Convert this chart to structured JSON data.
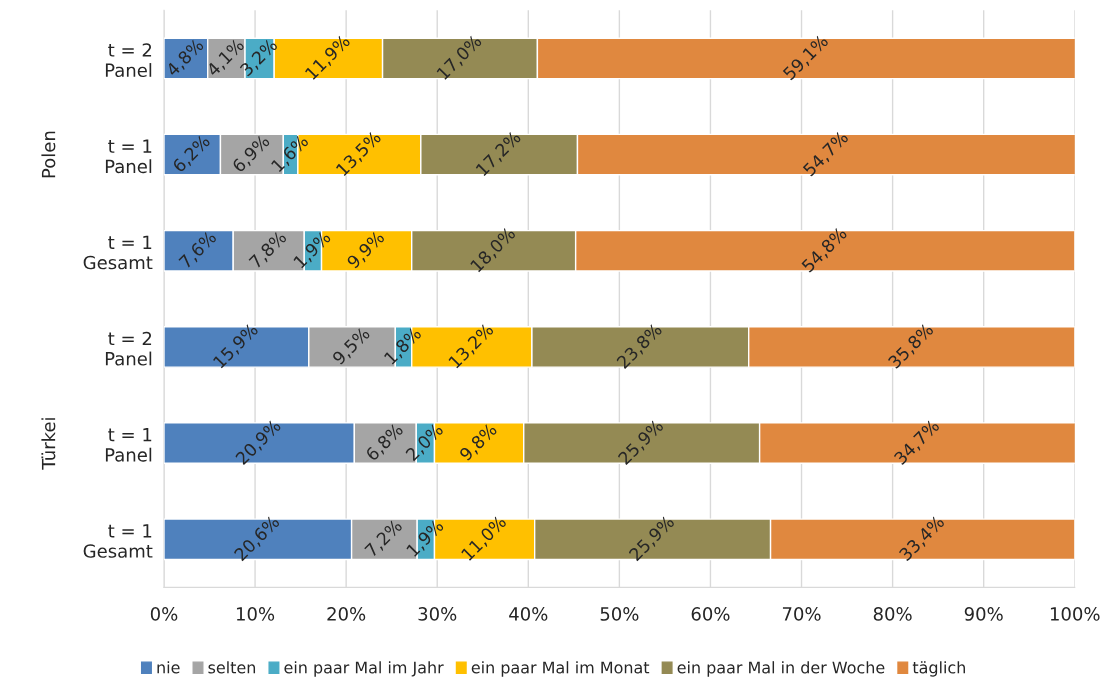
{
  "chart_data": {
    "type": "bar",
    "orientation": "horizontal",
    "stacked": true,
    "categories": [
      "t = 2\nPanel",
      "t = 1\nPanel",
      "t = 1\nGesamt",
      "t = 2\nPanel",
      "t = 1\nPanel",
      "t = 1\nGesamt"
    ],
    "annotations": [
      "Polen",
      "Türkei"
    ],
    "series": [
      {
        "name": "nie",
        "color": "#4f81bd",
        "values": [
          4.8,
          6.2,
          7.6,
          15.9,
          20.9,
          20.6
        ],
        "value_labels": [
          "4,8%",
          "6,2%",
          "7,6%",
          "15,9%",
          "20,9%",
          "20,6%"
        ]
      },
      {
        "name": "selten",
        "color": "#a5a5a5",
        "values": [
          4.1,
          6.9,
          7.8,
          9.5,
          6.8,
          7.2
        ],
        "value_labels": [
          "4,1%",
          "6,9%",
          "7,8%",
          "9,5%",
          "6,8%",
          "7,2%"
        ]
      },
      {
        "name": "ein paar Mal im Jahr",
        "color": "#4bacc6",
        "values": [
          3.2,
          1.6,
          1.9,
          1.8,
          2.0,
          1.9
        ],
        "value_labels": [
          "3,2%",
          "1,6%",
          "1,9%",
          "1,8%",
          "2,0%",
          "1,9%"
        ]
      },
      {
        "name": "ein paar Mal im Monat",
        "color": "#ffc000",
        "values": [
          11.9,
          13.5,
          9.9,
          13.2,
          9.8,
          11.0
        ],
        "value_labels": [
          "11,9%",
          "13,5%",
          "9,9%",
          "13,2%",
          "9,8%",
          "11,0%"
        ]
      },
      {
        "name": "ein paar Mal in der Woche",
        "color": "#948a54",
        "values": [
          17.0,
          17.2,
          18.0,
          23.8,
          25.9,
          25.9
        ],
        "value_labels": [
          "17,0%",
          "17,2%",
          "18,0%",
          "23,8%",
          "25,9%",
          "25,9%"
        ]
      },
      {
        "name": "täglich",
        "color": "#e0883f",
        "values": [
          59.1,
          54.7,
          54.8,
          35.8,
          34.7,
          33.4
        ],
        "value_labels": [
          "59,1%",
          "54,7%",
          "54,8%",
          "35,8%",
          "34,7%",
          "33,4%"
        ]
      }
    ],
    "xlim": [
      0,
      100
    ],
    "xticks": [
      {
        "value": 0,
        "label": "0%"
      },
      {
        "value": 10,
        "label": "10%"
      },
      {
        "value": 20,
        "label": "20%"
      },
      {
        "value": 30,
        "label": "30%"
      },
      {
        "value": 40,
        "label": "40%"
      },
      {
        "value": 50,
        "label": "50%"
      },
      {
        "value": 60,
        "label": "60%"
      },
      {
        "value": 70,
        "label": "70%"
      },
      {
        "value": 80,
        "label": "80%"
      },
      {
        "value": 90,
        "label": "90%"
      },
      {
        "value": 100,
        "label": "100%"
      }
    ],
    "grid": "x",
    "legend": "bottom"
  }
}
